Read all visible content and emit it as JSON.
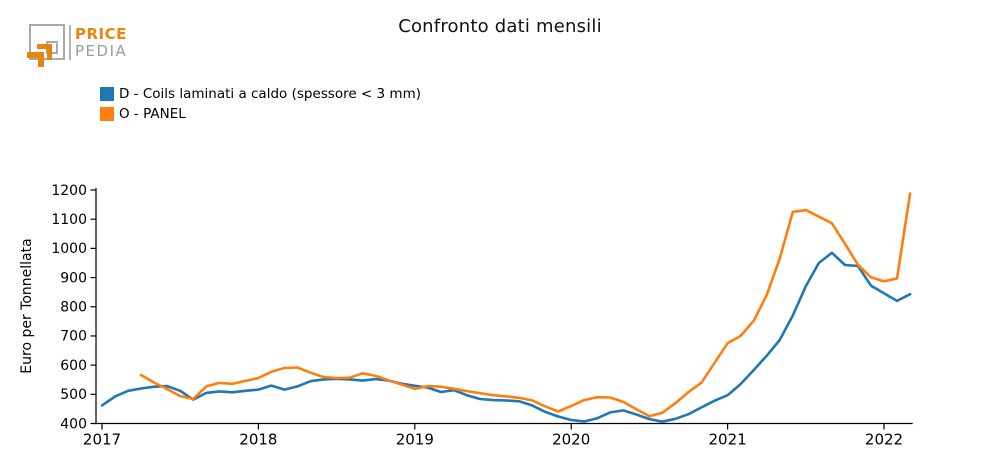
{
  "header": {
    "title": "Confronto dati mensili",
    "logo": {
      "line1": "PRICE",
      "line2": "PEDIA",
      "brand_orange": "#e8850f",
      "brand_gray": "#9b9b9b"
    }
  },
  "legend": {
    "items": [
      {
        "label": "D - Coils laminati a caldo (spessore < 3 mm)",
        "color": "#1f77b4"
      },
      {
        "label": "O - PANEL",
        "color": "#ff7f0e"
      }
    ]
  },
  "chart_data": {
    "type": "line",
    "title": "Confronto dati mensili",
    "xlabel": "",
    "ylabel": "Euro per Tonnellata",
    "ylim": [
      400,
      1200
    ],
    "yticks": [
      400,
      500,
      600,
      700,
      800,
      900,
      1000,
      1100,
      1200
    ],
    "xtick_labels": [
      "2017",
      "2018",
      "2019",
      "2020",
      "2021",
      "2022"
    ],
    "x_unit": "month",
    "x_start": "2017-01",
    "x_end": "2022-03",
    "grid": false,
    "legend_position": "top-left",
    "axis_color": "#000000",
    "series": [
      {
        "name": "D - Coils laminati a caldo (spessore < 3 mm)",
        "color": "#1f77b4",
        "start_month_index": 0,
        "values": [
          462,
          492,
          512,
          520,
          526,
          528,
          512,
          482,
          505,
          510,
          507,
          512,
          516,
          530,
          516,
          527,
          545,
          551,
          553,
          551,
          547,
          552,
          547,
          536,
          529,
          523,
          508,
          514,
          497,
          484,
          480,
          479,
          476,
          462,
          440,
          424,
          412,
          407,
          418,
          438,
          445,
          431,
          415,
          406,
          416,
          432,
          455,
          478,
          497,
          535,
          583,
          632,
          686,
          770,
          870,
          950,
          985,
          943,
          940,
          872,
          846,
          820,
          843
        ]
      },
      {
        "name": "O - PANEL",
        "color": "#ff7f0e",
        "start_month_index": 3,
        "values": [
          566,
          540,
          518,
          494,
          484,
          527,
          539,
          536,
          546,
          556,
          577,
          590,
          592,
          574,
          559,
          556,
          557,
          572,
          563,
          548,
          533,
          519,
          528,
          526,
          519,
          511,
          504,
          497,
          493,
          488,
          479,
          459,
          441,
          460,
          480,
          490,
          489,
          474,
          449,
          425,
          437,
          470,
          508,
          540,
          608,
          675,
          700,
          752,
          840,
          965,
          1125,
          1131,
          1109,
          1086,
          1016,
          944,
          901,
          887,
          897,
          1188
        ]
      }
    ]
  }
}
